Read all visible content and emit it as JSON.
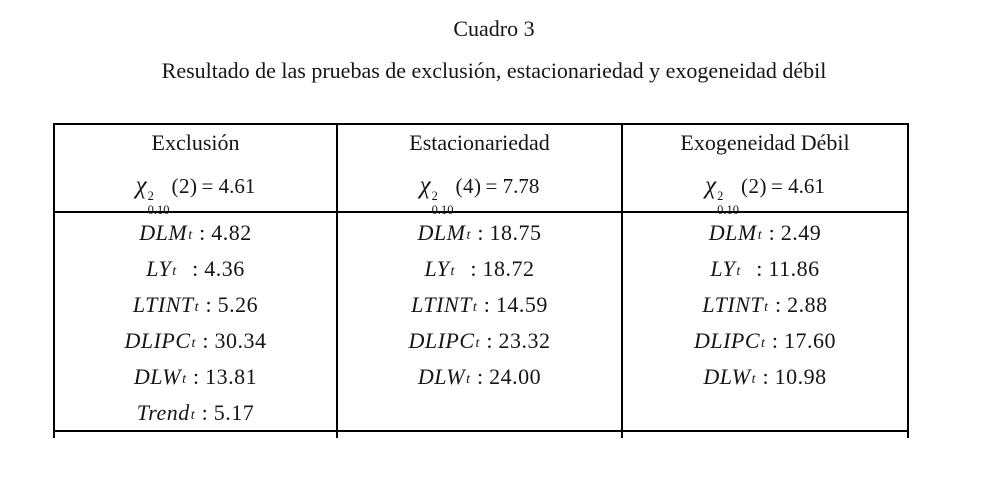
{
  "page": {
    "title": "Cuadro 3",
    "subtitle": "Resultado de las pruebas de exclusión, estacionariedad y exogeneidad débil"
  },
  "colors": {
    "text": "#151515",
    "border": "#000000",
    "background": "#ffffff"
  },
  "table": {
    "columns": [
      {
        "header": "Exclusión",
        "chi": {
          "symbol": "χ",
          "sup": "2",
          "sub": "0.10",
          "arg": "(2)",
          "rhs": "= 4.61"
        },
        "rows": [
          {
            "var": "DLM",
            "sub": "t",
            "sep": ":",
            "value": "4.82"
          },
          {
            "var": "LY",
            "sub": "t",
            "sep": ":",
            "value": "4.36",
            "wide_gap": true
          },
          {
            "var": "LTINT",
            "sub": "t",
            "sep": ":",
            "value": "5.26"
          },
          {
            "var": "DLIPC",
            "sub": "t",
            "sep": ":",
            "value": "30.34"
          },
          {
            "var": "DLW",
            "sub": "t",
            "sep": ":",
            "value": "13.81"
          },
          {
            "var": "Trend",
            "sub": "t",
            "sep": ":",
            "value": "5.17"
          }
        ]
      },
      {
        "header": "Estacionariedad",
        "chi": {
          "symbol": "χ",
          "sup": "2",
          "sub": "0.10",
          "arg": "(4)",
          "rhs": "= 7.78"
        },
        "rows": [
          {
            "var": "DLM",
            "sub": "t",
            "sep": ":",
            "value": "18.75"
          },
          {
            "var": "LY",
            "sub": "t",
            "sep": ":",
            "value": "18.72",
            "wide_gap": true
          },
          {
            "var": "LTINT",
            "sub": "t",
            "sep": ":",
            "value": "14.59"
          },
          {
            "var": "DLIPC",
            "sub": "t",
            "sep": ":",
            "value": "23.32"
          },
          {
            "var": "DLW",
            "sub": "t",
            "sep": ":",
            "value": "24.00"
          }
        ]
      },
      {
        "header": "Exogeneidad Débil",
        "chi": {
          "symbol": "χ",
          "sup": "2",
          "sub": "0.10",
          "arg": "(2)",
          "rhs": "= 4.61"
        },
        "rows": [
          {
            "var": "DLM",
            "sub": "t",
            "sep": ":",
            "value": "2.49"
          },
          {
            "var": "LY",
            "sub": "t",
            "sep": ":",
            "value": "11.86",
            "wide_gap": true
          },
          {
            "var": "LTINT",
            "sub": "t",
            "sep": ":",
            "value": "2.88"
          },
          {
            "var": "DLIPC",
            "sub": "t",
            "sep": ":",
            "value": "17.60"
          },
          {
            "var": "DLW",
            "sub": "t",
            "sep": ":",
            "value": "10.98"
          }
        ]
      }
    ]
  }
}
